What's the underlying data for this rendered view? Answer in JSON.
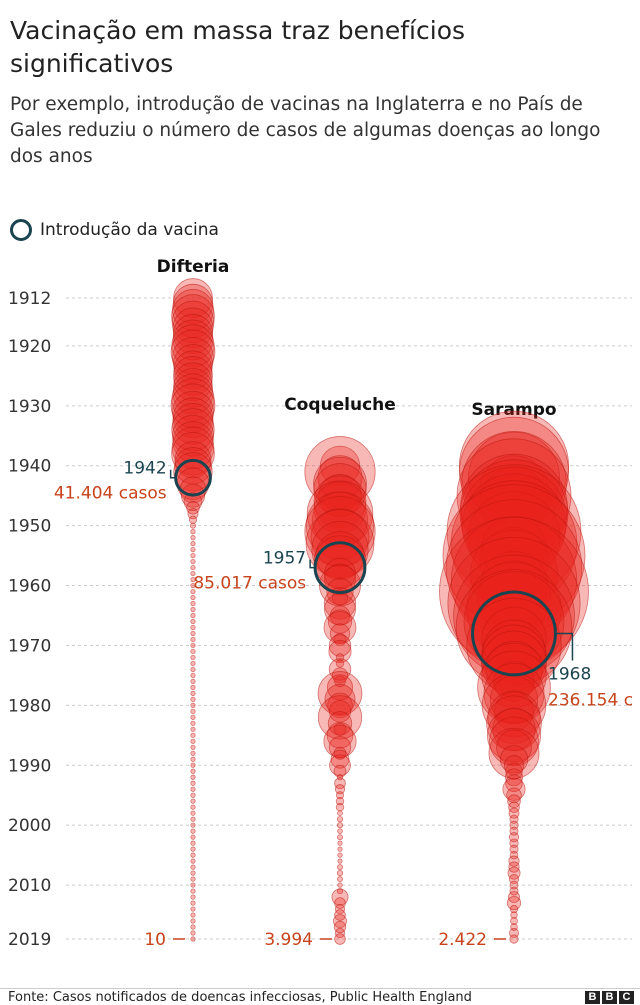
{
  "header": {
    "title": "Vacinação em massa traz benefícios significativos",
    "subtitle": "Por exemplo, introdução de vacinas na Inglaterra e no País de Gales reduziu o número de casos de algumas doenças ao longo dos anos"
  },
  "legend": {
    "label": "Introdução da vacina"
  },
  "footer": {
    "source": "Fonte: Casos notificados de doencas infecciosas, Public Health England",
    "logo": [
      "B",
      "B",
      "C"
    ]
  },
  "colors": {
    "bubble_fill": "#e8221b",
    "bubble_stroke": "#b8160f",
    "vaccine_ring": "#1b4451",
    "case_label": "#c8431b",
    "year_label": "#1b4451",
    "grid": "#cccccc"
  },
  "chart_data": {
    "type": "scatter",
    "encoding": "bubble area proportional to annual notified cases",
    "y_axis": {
      "ticks": [
        1912,
        1920,
        1930,
        1940,
        1950,
        1960,
        1970,
        1980,
        1990,
        2000,
        2010,
        2019
      ],
      "range": [
        1912,
        2019
      ],
      "grid": true
    },
    "series": [
      {
        "name": "Difteria",
        "vaccine_year": 1942,
        "vaccine_label_year": "1942",
        "vaccine_cases_label": "41.404 casos",
        "final_year": 2019,
        "final_label": "10",
        "points": [
          [
            1912,
            52000
          ],
          [
            1913,
            54000
          ],
          [
            1914,
            58000
          ],
          [
            1915,
            63000
          ],
          [
            1916,
            60000
          ],
          [
            1917,
            55000
          ],
          [
            1918,
            53000
          ],
          [
            1919,
            55000
          ],
          [
            1920,
            62000
          ],
          [
            1921,
            66000
          ],
          [
            1922,
            58000
          ],
          [
            1923,
            52000
          ],
          [
            1924,
            50000
          ],
          [
            1925,
            52000
          ],
          [
            1926,
            50000
          ],
          [
            1927,
            52000
          ],
          [
            1928,
            55000
          ],
          [
            1929,
            62000
          ],
          [
            1930,
            66000
          ],
          [
            1931,
            58000
          ],
          [
            1932,
            55000
          ],
          [
            1933,
            57000
          ],
          [
            1934,
            62000
          ],
          [
            1935,
            58000
          ],
          [
            1936,
            56000
          ],
          [
            1937,
            60000
          ],
          [
            1938,
            63000
          ],
          [
            1939,
            45000
          ],
          [
            1940,
            46000
          ],
          [
            1941,
            51000
          ],
          [
            1942,
            41404
          ],
          [
            1943,
            35000
          ],
          [
            1944,
            23000
          ],
          [
            1945,
            18500
          ],
          [
            1946,
            11000
          ],
          [
            1947,
            5600
          ],
          [
            1948,
            3600
          ],
          [
            1949,
            1900
          ],
          [
            1950,
            960
          ],
          [
            1951,
            660
          ],
          [
            1952,
            380
          ],
          [
            1953,
            260
          ],
          [
            1954,
            170
          ],
          [
            1955,
            155
          ],
          [
            1956,
            50
          ],
          [
            1957,
            35
          ],
          [
            1958,
            70
          ],
          [
            1959,
            100
          ],
          [
            1960,
            8
          ],
          [
            1961,
            45
          ],
          [
            1962,
            15
          ],
          [
            1963,
            30
          ],
          [
            1964,
            20
          ],
          [
            1965,
            25
          ],
          [
            1966,
            10
          ],
          [
            1967,
            8
          ],
          [
            1968,
            15
          ],
          [
            1969,
            10
          ],
          [
            1970,
            20
          ],
          [
            1971,
            15
          ],
          [
            1972,
            5
          ],
          [
            1973,
            5
          ],
          [
            1974,
            5
          ],
          [
            1975,
            5
          ],
          [
            1976,
            5
          ],
          [
            1977,
            5
          ],
          [
            1978,
            5
          ],
          [
            1979,
            5
          ],
          [
            1980,
            5
          ],
          [
            1981,
            5
          ],
          [
            1982,
            5
          ],
          [
            1983,
            5
          ],
          [
            1984,
            5
          ],
          [
            1985,
            5
          ],
          [
            1986,
            5
          ],
          [
            1987,
            5
          ],
          [
            1988,
            5
          ],
          [
            1989,
            5
          ],
          [
            1990,
            5
          ],
          [
            1991,
            5
          ],
          [
            1992,
            5
          ],
          [
            1993,
            5
          ],
          [
            1994,
            5
          ],
          [
            1995,
            5
          ],
          [
            1996,
            5
          ],
          [
            1997,
            5
          ],
          [
            1998,
            5
          ],
          [
            1999,
            5
          ],
          [
            2000,
            5
          ],
          [
            2001,
            5
          ],
          [
            2002,
            5
          ],
          [
            2003,
            5
          ],
          [
            2004,
            5
          ],
          [
            2005,
            5
          ],
          [
            2006,
            5
          ],
          [
            2007,
            5
          ],
          [
            2008,
            5
          ],
          [
            2009,
            5
          ],
          [
            2010,
            5
          ],
          [
            2011,
            5
          ],
          [
            2012,
            5
          ],
          [
            2013,
            5
          ],
          [
            2014,
            5
          ],
          [
            2015,
            5
          ],
          [
            2016,
            5
          ],
          [
            2017,
            5
          ],
          [
            2018,
            5
          ],
          [
            2019,
            10
          ]
        ]
      },
      {
        "name": "Coqueluche",
        "vaccine_year": 1957,
        "vaccine_label_year": "1957",
        "vaccine_cases_label": "85.017 casos",
        "final_year": 2019,
        "final_label": "3.994",
        "points": [
          [
            1940,
            53000
          ],
          [
            1941,
            170000
          ],
          [
            1942,
            67000
          ],
          [
            1943,
            96000
          ],
          [
            1944,
            94000
          ],
          [
            1945,
            62000
          ],
          [
            1946,
            92000
          ],
          [
            1947,
            92000
          ],
          [
            1948,
            148000
          ],
          [
            1949,
            104000
          ],
          [
            1950,
            157000
          ],
          [
            1951,
            170000
          ],
          [
            1952,
            115000
          ],
          [
            1953,
            158000
          ],
          [
            1954,
            109000
          ],
          [
            1955,
            79000
          ],
          [
            1956,
            92000
          ],
          [
            1957,
            85017
          ],
          [
            1958,
            33000
          ],
          [
            1959,
            33000
          ],
          [
            1960,
            58000
          ],
          [
            1961,
            24000
          ],
          [
            1962,
            8000
          ],
          [
            1963,
            34000
          ],
          [
            1964,
            33000
          ],
          [
            1965,
            13000
          ],
          [
            1966,
            19000
          ],
          [
            1967,
            35000
          ],
          [
            1968,
            13000
          ],
          [
            1969,
            5000
          ],
          [
            1970,
            16000
          ],
          [
            1971,
            17000
          ],
          [
            1972,
            2000
          ],
          [
            1973,
            2000
          ],
          [
            1974,
            16000
          ],
          [
            1975,
            8000
          ],
          [
            1976,
            4000
          ],
          [
            1977,
            22000
          ],
          [
            1978,
            66000
          ],
          [
            1979,
            31000
          ],
          [
            1980,
            21000
          ],
          [
            1981,
            16000
          ],
          [
            1982,
            65000
          ],
          [
            1983,
            19000
          ],
          [
            1984,
            5000
          ],
          [
            1985,
            23000
          ],
          [
            1986,
            36000
          ],
          [
            1987,
            16000
          ],
          [
            1988,
            5000
          ],
          [
            1989,
            11000
          ],
          [
            1990,
            15000
          ],
          [
            1991,
            5000
          ],
          [
            1992,
            1000
          ],
          [
            1993,
            4000
          ],
          [
            1994,
            3000
          ],
          [
            1995,
            1800
          ],
          [
            1996,
            2000
          ],
          [
            1997,
            2000
          ],
          [
            1998,
            800
          ],
          [
            1999,
            1000
          ],
          [
            2000,
            1000
          ],
          [
            2001,
            800
          ],
          [
            2002,
            900
          ],
          [
            2003,
            600
          ],
          [
            2004,
            400
          ],
          [
            2005,
            700
          ],
          [
            2006,
            500
          ],
          [
            2007,
            900
          ],
          [
            2008,
            1000
          ],
          [
            2009,
            900
          ],
          [
            2010,
            700
          ],
          [
            2011,
            1000
          ],
          [
            2012,
            9000
          ],
          [
            2013,
            4000
          ],
          [
            2014,
            3000
          ],
          [
            2015,
            4000
          ],
          [
            2016,
            5900
          ],
          [
            2017,
            4500
          ],
          [
            2018,
            3000
          ],
          [
            2019,
            3994
          ]
        ]
      },
      {
        "name": "Sarampo",
        "vaccine_year": 1968,
        "vaccine_label_year": "1968",
        "vaccine_cases_label": "236.154 c",
        "final_year": 2019,
        "final_label": "2.422",
        "points": [
          [
            1940,
            410000
          ],
          [
            1941,
            409000
          ],
          [
            1942,
            286000
          ],
          [
            1943,
            376000
          ],
          [
            1944,
            159000
          ],
          [
            1945,
            446000
          ],
          [
            1946,
            160000
          ],
          [
            1947,
            393000
          ],
          [
            1948,
            399000
          ],
          [
            1949,
            385000
          ],
          [
            1950,
            368000
          ],
          [
            1951,
            616000
          ],
          [
            1952,
            291000
          ],
          [
            1953,
            545000
          ],
          [
            1954,
            146000
          ],
          [
            1955,
            693000
          ],
          [
            1956,
            160000
          ],
          [
            1957,
            633000
          ],
          [
            1958,
            260000
          ],
          [
            1959,
            540000
          ],
          [
            1960,
            159000
          ],
          [
            1961,
            763000
          ],
          [
            1962,
            184000
          ],
          [
            1963,
            601000
          ],
          [
            1964,
            307000
          ],
          [
            1965,
            502000
          ],
          [
            1966,
            343000
          ],
          [
            1967,
            460000
          ],
          [
            1968,
            236154
          ],
          [
            1969,
            143000
          ],
          [
            1970,
            307000
          ],
          [
            1971,
            135000
          ],
          [
            1972,
            145000
          ],
          [
            1973,
            145000
          ],
          [
            1974,
            109000
          ],
          [
            1975,
            143000
          ],
          [
            1976,
            55000
          ],
          [
            1977,
            182000
          ],
          [
            1978,
            124000
          ],
          [
            1979,
            77000
          ],
          [
            1980,
            139000
          ],
          [
            1981,
            52000
          ],
          [
            1982,
            94000
          ],
          [
            1983,
            103000
          ],
          [
            1984,
            62000
          ],
          [
            1985,
            97000
          ],
          [
            1986,
            82000
          ],
          [
            1987,
            42000
          ],
          [
            1988,
            86000
          ],
          [
            1989,
            26000
          ],
          [
            1990,
            13000
          ],
          [
            1991,
            9600
          ],
          [
            1992,
            10000
          ],
          [
            1993,
            9600
          ],
          [
            1994,
            17000
          ],
          [
            1995,
            7400
          ],
          [
            1996,
            5600
          ],
          [
            1997,
            3900
          ],
          [
            1998,
            3500
          ],
          [
            1999,
            2400
          ],
          [
            2000,
            2400
          ],
          [
            2001,
            2300
          ],
          [
            2002,
            3000
          ],
          [
            2003,
            2500
          ],
          [
            2004,
            2300
          ],
          [
            2005,
            2100
          ],
          [
            2006,
            3700
          ],
          [
            2007,
            3700
          ],
          [
            2008,
            5100
          ],
          [
            2009,
            3000
          ],
          [
            2010,
            2200
          ],
          [
            2011,
            2300
          ],
          [
            2012,
            4200
          ],
          [
            2013,
            6200
          ],
          [
            2014,
            1900
          ],
          [
            2015,
            1500
          ],
          [
            2016,
            1700
          ],
          [
            2017,
            1600
          ],
          [
            2018,
            2900
          ],
          [
            2019,
            2422
          ]
        ]
      }
    ]
  }
}
